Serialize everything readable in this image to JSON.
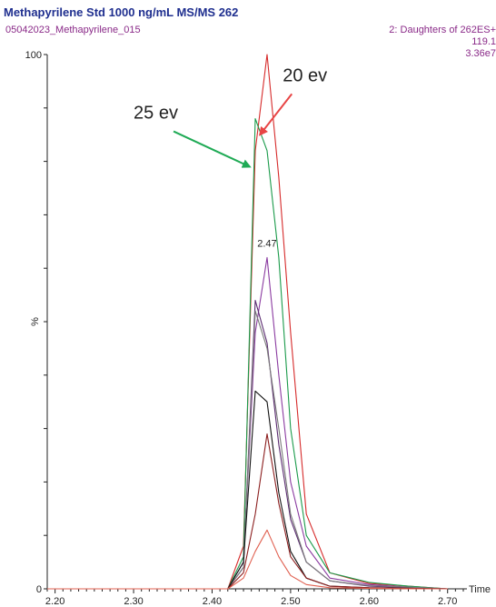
{
  "header": {
    "title": "Methapyrilene Std 1000 ng/mL MS/MS 262",
    "sample": "05042023_Methapyrilene_015",
    "function": "2: Daughters of 262ES+",
    "mass": "119.1",
    "intensity": "3.36e7"
  },
  "chart_data": {
    "type": "line",
    "xlabel": "Time",
    "ylabel": "%",
    "xlim": [
      2.19,
      2.72
    ],
    "ylim": [
      0,
      100
    ],
    "x_ticks": [
      "2.20",
      "2.30",
      "2.40",
      "2.50",
      "2.60",
      "2.70"
    ],
    "y_ticks": [
      "0",
      "100"
    ],
    "peak_label": "2.47",
    "annotations": [
      {
        "text": "20 ev",
        "color": "#e84545",
        "x": 2.49,
        "y": 95,
        "arrow_to": [
          2.461,
          85
        ]
      },
      {
        "text": "25 ev",
        "color": "#1faa55",
        "x": 2.3,
        "y": 88,
        "arrow_to": [
          2.448,
          79
        ]
      }
    ],
    "series": [
      {
        "color": "#d62a2a",
        "x": [
          2.19,
          2.42,
          2.44,
          2.455,
          2.47,
          2.485,
          2.5,
          2.52,
          2.55,
          2.6,
          2.65,
          2.7
        ],
        "y": [
          0,
          0,
          8,
          82,
          100,
          77,
          48,
          14,
          3,
          1,
          0.5,
          0
        ]
      },
      {
        "color": "#1a9a4a",
        "x": [
          2.19,
          2.42,
          2.44,
          2.455,
          2.47,
          2.485,
          2.5,
          2.52,
          2.55,
          2.6,
          2.65,
          2.7
        ],
        "y": [
          0,
          0,
          6,
          88,
          82,
          62,
          30,
          10,
          3,
          1.2,
          0.5,
          0
        ]
      },
      {
        "color": "#8a3aa0",
        "x": [
          2.19,
          2.42,
          2.44,
          2.455,
          2.47,
          2.485,
          2.5,
          2.52,
          2.55,
          2.6,
          2.65,
          2.7
        ],
        "y": [
          0,
          0,
          5,
          48,
          62,
          40,
          20,
          8,
          2,
          0.8,
          0.3,
          0
        ]
      },
      {
        "color": "#5a2a70",
        "x": [
          2.19,
          2.42,
          2.44,
          2.455,
          2.47,
          2.485,
          2.5,
          2.52,
          2.55,
          2.6,
          2.65,
          2.7
        ],
        "y": [
          0,
          0,
          4,
          54,
          46,
          27,
          13,
          5,
          1.5,
          0.5,
          0.2,
          0
        ]
      },
      {
        "color": "#7a7a7a",
        "x": [
          2.19,
          2.42,
          2.44,
          2.455,
          2.47,
          2.485,
          2.5,
          2.52,
          2.55,
          2.6,
          2.65,
          2.7
        ],
        "y": [
          0,
          0,
          4,
          52,
          45,
          30,
          14,
          5,
          1.5,
          0.6,
          0.3,
          0
        ]
      },
      {
        "color": "#111111",
        "x": [
          2.19,
          2.42,
          2.44,
          2.455,
          2.47,
          2.485,
          2.5,
          2.52,
          2.55,
          2.6,
          2.65,
          2.7
        ],
        "y": [
          0,
          0,
          5,
          37,
          35,
          18,
          7,
          2,
          0.5,
          0.2,
          0.1,
          0
        ]
      },
      {
        "color": "#8b1e1e",
        "x": [
          2.19,
          2.42,
          2.44,
          2.455,
          2.47,
          2.485,
          2.5,
          2.52,
          2.55,
          2.6,
          2.65,
          2.7
        ],
        "y": [
          0,
          0,
          3,
          14,
          29,
          16,
          6,
          2,
          0.5,
          0.2,
          0.1,
          0
        ]
      },
      {
        "color": "#e06050",
        "x": [
          2.19,
          2.42,
          2.44,
          2.455,
          2.47,
          2.485,
          2.5,
          2.52,
          2.55,
          2.6,
          2.65,
          2.7
        ],
        "y": [
          0,
          0,
          2,
          7,
          11,
          6,
          2.5,
          0.8,
          0.2,
          0.1,
          0,
          0
        ]
      }
    ]
  }
}
